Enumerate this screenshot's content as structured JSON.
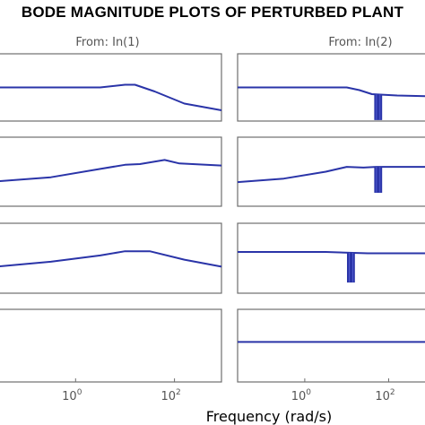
{
  "title": "BODE MAGNITUDE PLOTS OF PERTURBED PLANT",
  "chart_data": {
    "type": "line",
    "title": "BODE MAGNITUDE PLOTS OF PERTURBED PLANT",
    "xlabel": "Frequency  (rad/s)",
    "x_scale": "log",
    "x_ticks": [
      {
        "exponent": 0,
        "base": "10",
        "exp": "0"
      },
      {
        "exponent": 2,
        "base": "10",
        "exp": "2"
      }
    ],
    "xlim_exponent": [
      -1.6,
      2.95
    ],
    "grid": false,
    "line_color": "#2a34a8",
    "columns": [
      "From: In(1)",
      "From: In(2)"
    ],
    "panels": [
      {
        "row": 0,
        "col": 0,
        "points": [
          [
            -1.6,
            0.5
          ],
          [
            -0.5,
            0.5
          ],
          [
            0.5,
            0.5
          ],
          [
            1.0,
            0.46
          ],
          [
            1.2,
            0.46
          ],
          [
            1.6,
            0.56
          ],
          [
            2.2,
            0.74
          ],
          [
            2.95,
            0.84
          ]
        ],
        "notches": []
      },
      {
        "row": 0,
        "col": 1,
        "points": [
          [
            -1.6,
            0.5
          ],
          [
            0.0,
            0.5
          ],
          [
            1.0,
            0.5
          ],
          [
            1.3,
            0.54
          ],
          [
            1.6,
            0.6
          ],
          [
            2.2,
            0.62
          ],
          [
            2.95,
            0.63
          ]
        ],
        "notches": [
          {
            "x": 1.75,
            "depth": 0.4
          }
        ]
      },
      {
        "row": 1,
        "col": 0,
        "points": [
          [
            -1.6,
            0.64
          ],
          [
            -0.5,
            0.58
          ],
          [
            0.5,
            0.46
          ],
          [
            1.0,
            0.4
          ],
          [
            1.3,
            0.39
          ],
          [
            1.8,
            0.33
          ],
          [
            2.1,
            0.38
          ],
          [
            2.95,
            0.41
          ]
        ],
        "notches": []
      },
      {
        "row": 1,
        "col": 1,
        "points": [
          [
            -1.6,
            0.65
          ],
          [
            -0.5,
            0.6
          ],
          [
            0.5,
            0.5
          ],
          [
            1.0,
            0.43
          ],
          [
            1.4,
            0.44
          ],
          [
            1.7,
            0.43
          ],
          [
            2.2,
            0.43
          ],
          [
            2.95,
            0.43
          ]
        ],
        "notches": [
          {
            "x": 1.75,
            "depth": 0.37
          }
        ]
      },
      {
        "row": 2,
        "col": 0,
        "points": [
          [
            -1.6,
            0.62
          ],
          [
            -0.5,
            0.55
          ],
          [
            0.5,
            0.46
          ],
          [
            1.0,
            0.4
          ],
          [
            1.5,
            0.4
          ],
          [
            2.2,
            0.52
          ],
          [
            2.95,
            0.62
          ]
        ],
        "notches": []
      },
      {
        "row": 2,
        "col": 1,
        "points": [
          [
            -1.6,
            0.41
          ],
          [
            0.5,
            0.41
          ],
          [
            1.5,
            0.43
          ],
          [
            2.5,
            0.43
          ],
          [
            2.95,
            0.43
          ]
        ],
        "notches": [
          {
            "x": 1.1,
            "depth": 0.42
          }
        ]
      },
      {
        "row": 3,
        "col": 0,
        "points": [],
        "notches": []
      },
      {
        "row": 3,
        "col": 1,
        "points": [
          [
            -1.6,
            0.45
          ],
          [
            2.95,
            0.45
          ]
        ],
        "notches": []
      }
    ]
  }
}
